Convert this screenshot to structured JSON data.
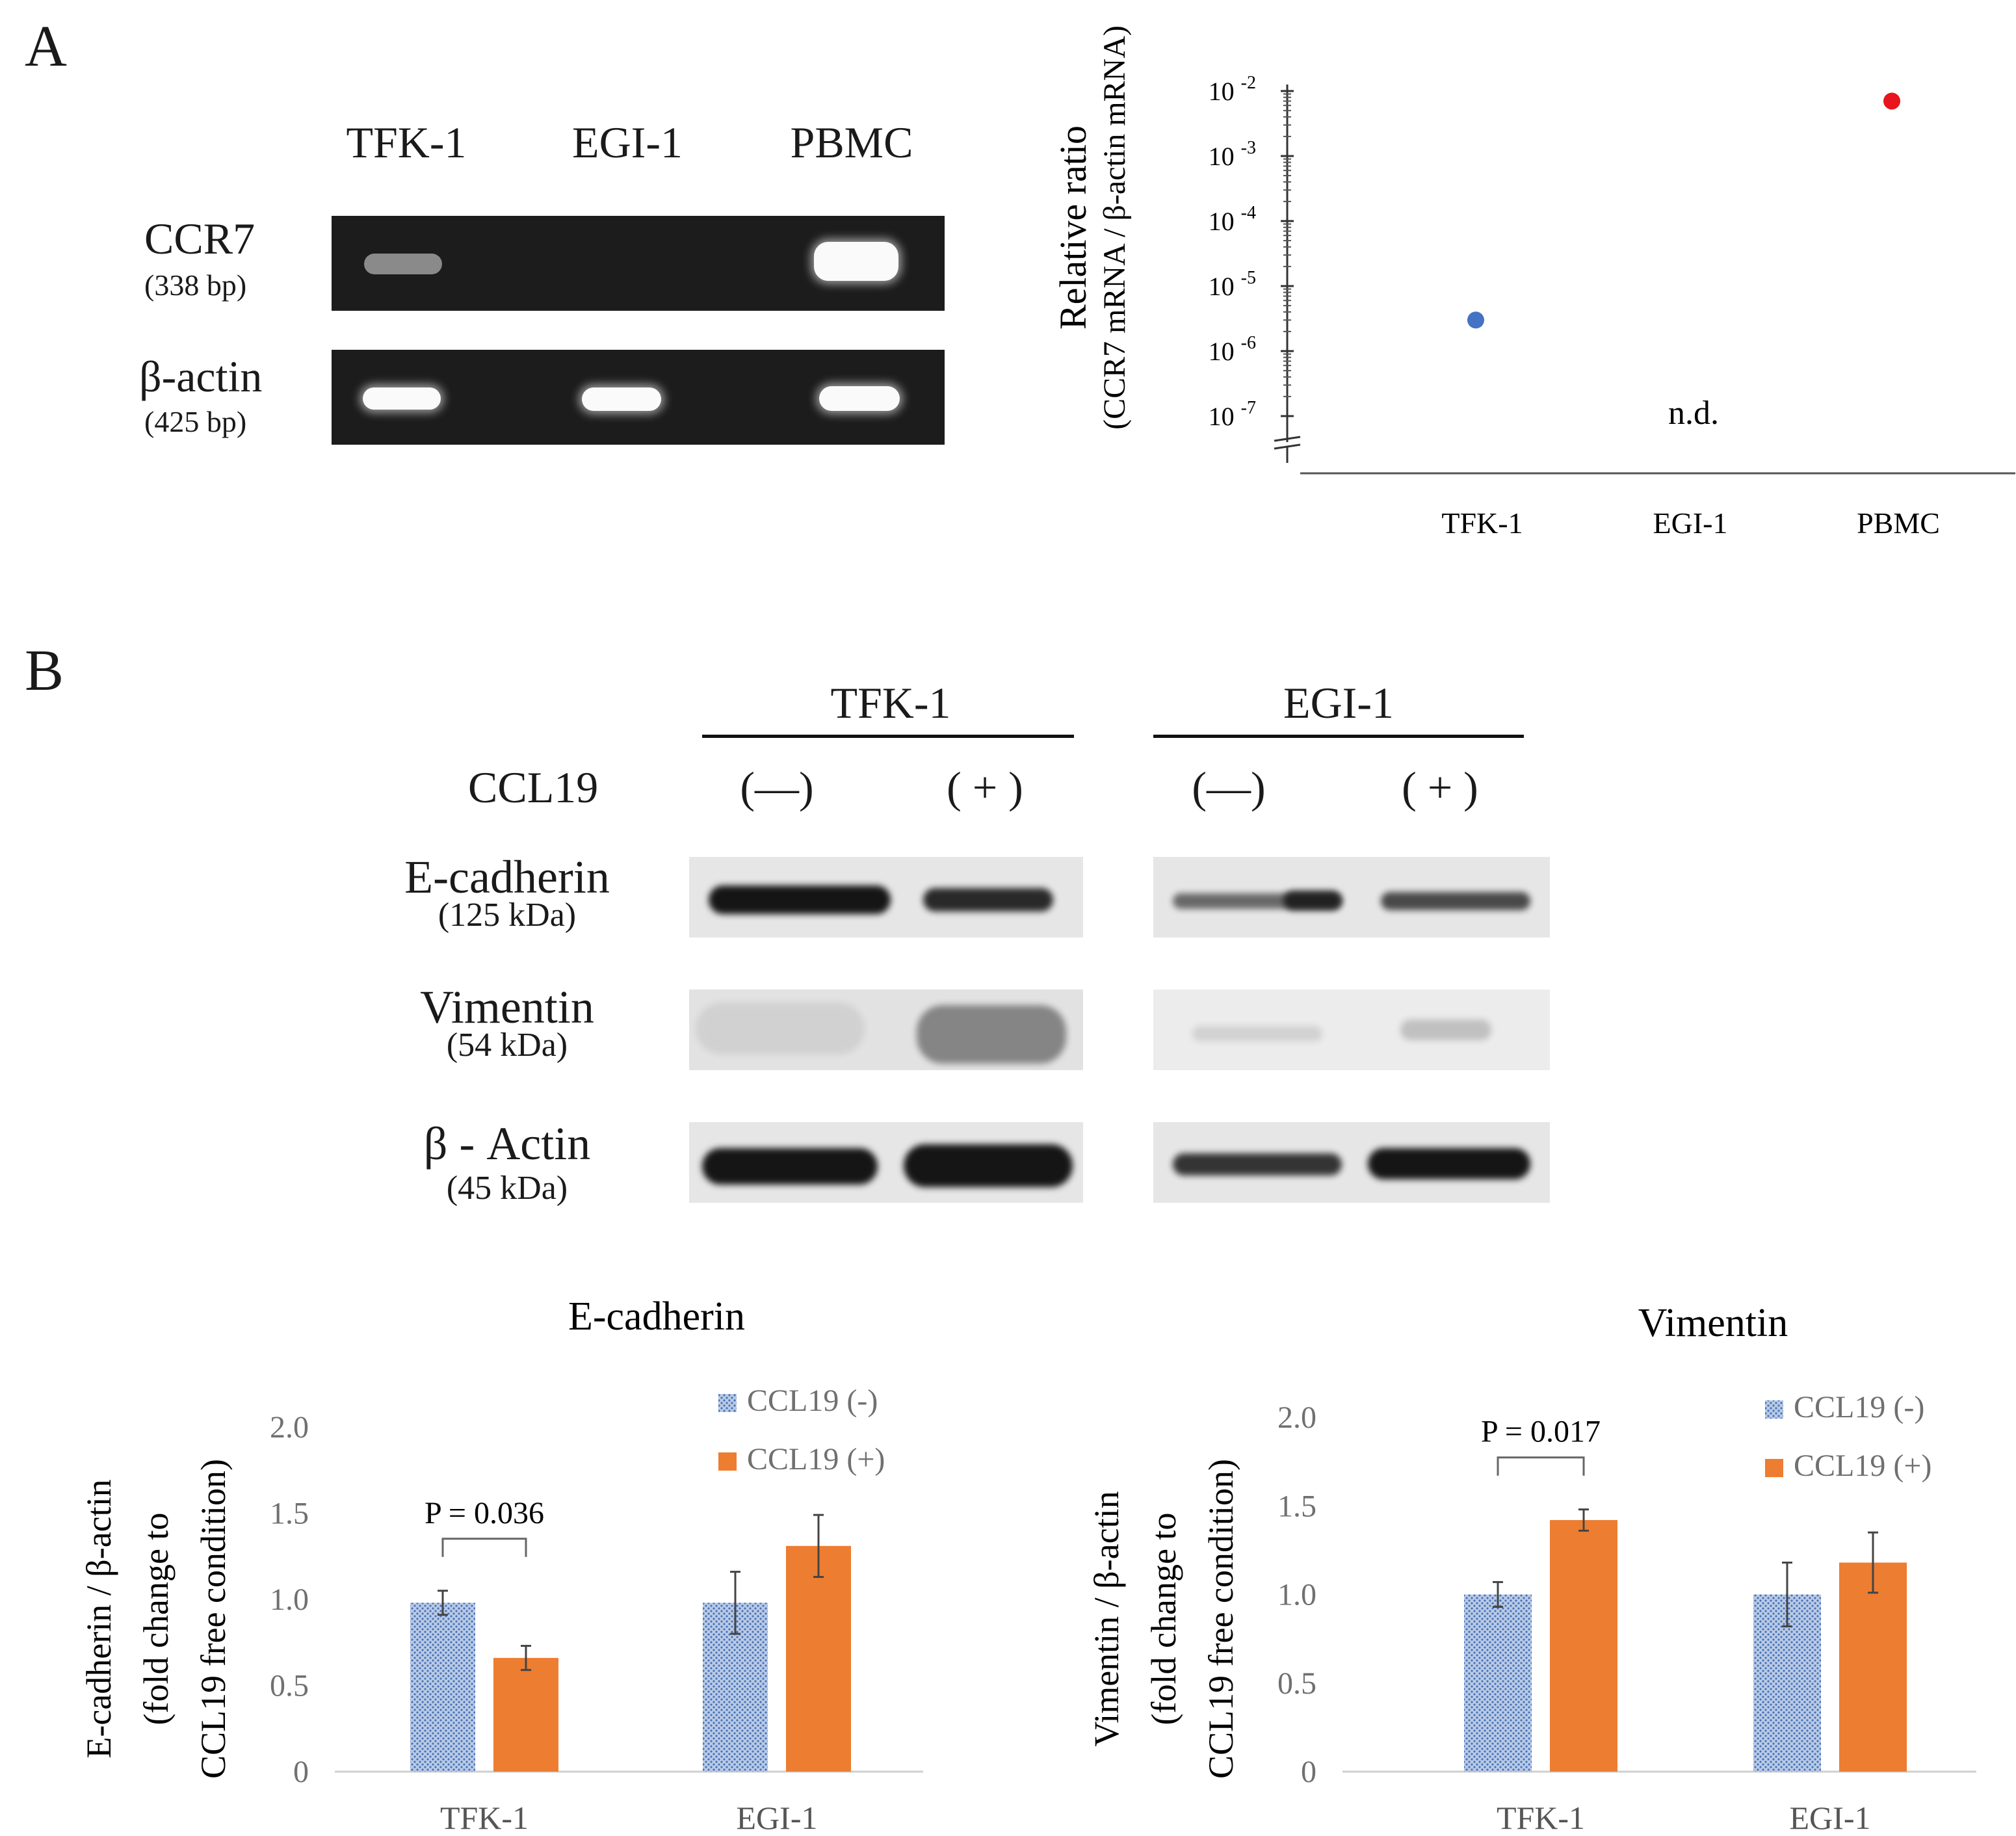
{
  "panel_a": {
    "letter": "A",
    "gel": {
      "lanes": [
        "TFK-1",
        "EGI-1",
        "PBMC"
      ],
      "rows": [
        {
          "name": "CCR7",
          "size": "(338 bp)"
        },
        {
          "name": "β-actin",
          "size": "(425 bp)"
        }
      ]
    }
  },
  "panel_b": {
    "letter": "B",
    "blot": {
      "groups": [
        "TFK-1",
        "EGI-1"
      ],
      "treatment_label": "CCL19",
      "conditions": [
        "(—)",
        "( + )",
        "(—)",
        "( + )"
      ],
      "rows": [
        {
          "name": "E-cadherin",
          "size": "(125 kDa)"
        },
        {
          "name": "Vimentin",
          "size": "(54 kDa)"
        },
        {
          "name": "β - Actin",
          "size": "(45 kDa)"
        }
      ]
    }
  },
  "colors": {
    "ccl19_minus": "#4a72b8",
    "ccl19_plus": "#ed7d31",
    "pbmc_point": "#e8141e",
    "tfk1_point": "#4472c4"
  },
  "chart_data": [
    {
      "type": "scatter",
      "ylabel_line1": "Relative ratio",
      "ylabel_line2": "(CCR7 mRNA / β-actin mRNA)",
      "y_scale": "log",
      "y_ticks": [
        "10 -2",
        "10 -3",
        "10 -4",
        "10 -5",
        "10 -6",
        "10 -7"
      ],
      "ylim": [
        1e-07,
        0.01
      ],
      "categories": [
        "TFK-1",
        "EGI-1",
        "PBMC"
      ],
      "values": [
        3e-06,
        null,
        0.007
      ],
      "annotation": "n.d."
    },
    {
      "type": "bar",
      "title": "E-cadherin",
      "ylabel_line1": "E-cadherin / β-actin",
      "ylabel_line2": "(fold change to",
      "ylabel_line3": "CCL19 free condition)",
      "y_ticks": [
        "2.0",
        "1.5",
        "1.0",
        "0.5",
        "0"
      ],
      "ylim": [
        0,
        2.0
      ],
      "categories": [
        "TFK-1",
        "EGI-1"
      ],
      "series": [
        {
          "name": "CCL19 (-)",
          "values": [
            0.98,
            0.98
          ],
          "errors": [
            0.07,
            0.18
          ]
        },
        {
          "name": "CCL19 (+)",
          "values": [
            0.66,
            1.31
          ],
          "errors": [
            0.07,
            0.18
          ]
        }
      ],
      "annotation": "P = 0.036",
      "legend_position": "top-right"
    },
    {
      "type": "bar",
      "title": "Vimentin",
      "ylabel_line1": "Vimentin / β-actin",
      "ylabel_line2": "(fold change to",
      "ylabel_line3": "CCL19 free condition)",
      "y_ticks": [
        "2.0",
        "1.5",
        "1.0",
        "0.5",
        "0"
      ],
      "ylim": [
        0,
        2.0
      ],
      "categories": [
        "TFK-1",
        "EGI-1"
      ],
      "series": [
        {
          "name": "CCL19 (-)",
          "values": [
            1.0,
            1.0
          ],
          "errors": [
            0.07,
            0.18
          ]
        },
        {
          "name": "CCL19 (+)",
          "values": [
            1.42,
            1.18
          ],
          "errors": [
            0.06,
            0.17
          ]
        }
      ],
      "annotation": "P = 0.017",
      "legend_position": "top-right"
    }
  ]
}
